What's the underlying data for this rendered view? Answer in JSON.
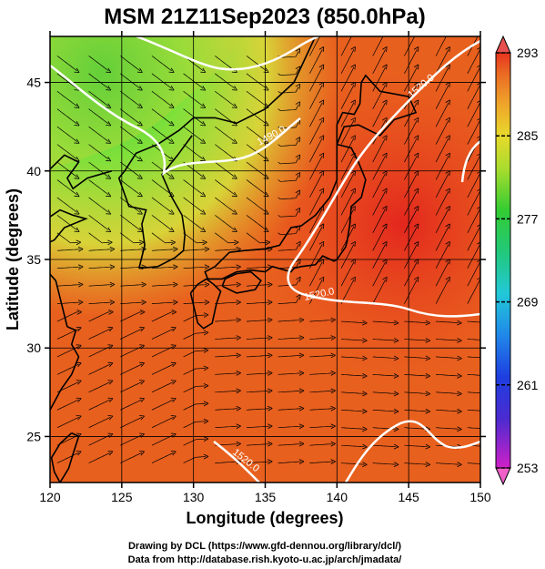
{
  "title": "MSM 21Z11Sep2023 (850.0hPa)",
  "x_axis": {
    "label": "Longitude (degrees)",
    "range": [
      120,
      150
    ],
    "ticks": [
      "120",
      "125",
      "130",
      "135",
      "140",
      "145",
      "150"
    ]
  },
  "y_axis": {
    "label": "Latitude  (degrees)",
    "range": [
      22.4,
      47.6
    ],
    "ticks": [
      "25",
      "30",
      "35",
      "40",
      "45"
    ]
  },
  "colorbar": {
    "range": [
      253,
      293
    ],
    "ticks": [
      "293",
      "285",
      "277",
      "269",
      "261",
      "253"
    ]
  },
  "contours": [
    {
      "label": "1490.0"
    },
    {
      "label": "1520.0"
    },
    {
      "label": "1520.0"
    },
    {
      "label": "1520.0"
    }
  ],
  "credits": {
    "line1": "Drawing by DCL (https://www.gfd-dennou.org/library/dcl/)",
    "line2": "Data from http://database.rish.kyoto-u.ac.jp/arch/jmadata/"
  },
  "colors": {
    "warm": "#e8401a",
    "cool": "#22c83c",
    "contour": "#ffffff",
    "streamline": "#000000"
  }
}
